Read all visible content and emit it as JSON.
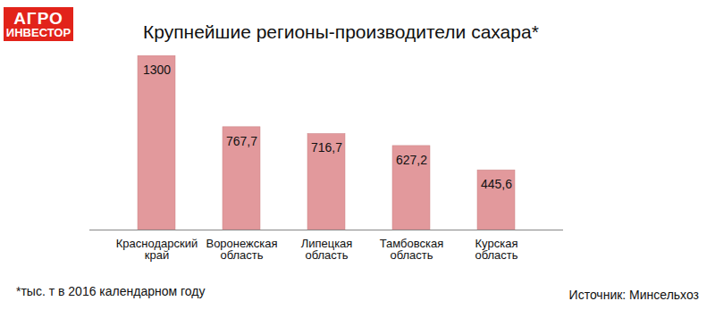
{
  "chart_data": {
    "type": "bar",
    "title": "Крупнейшие регионы-производители сахара*",
    "logo": [
      "АГРО",
      "ИНВЕСТОР"
    ],
    "footnote": "*тыс. т в 2016 календарном году",
    "source": "Источник: Минсельхоз",
    "categories": [
      "Краснодарский край",
      "Воронежская область",
      "Липецкая область",
      "Тамбовская область",
      "Курская область"
    ],
    "values": [
      1300,
      767.7,
      716.7,
      627.2,
      445.6
    ],
    "value_labels": [
      "1300",
      "767,7",
      "716,7",
      "627,2",
      "445,6"
    ],
    "data_labels": true,
    "color": "#e2999c",
    "ylim": [
      0,
      1300
    ],
    "tick_labels": "x",
    "grid": false
  }
}
